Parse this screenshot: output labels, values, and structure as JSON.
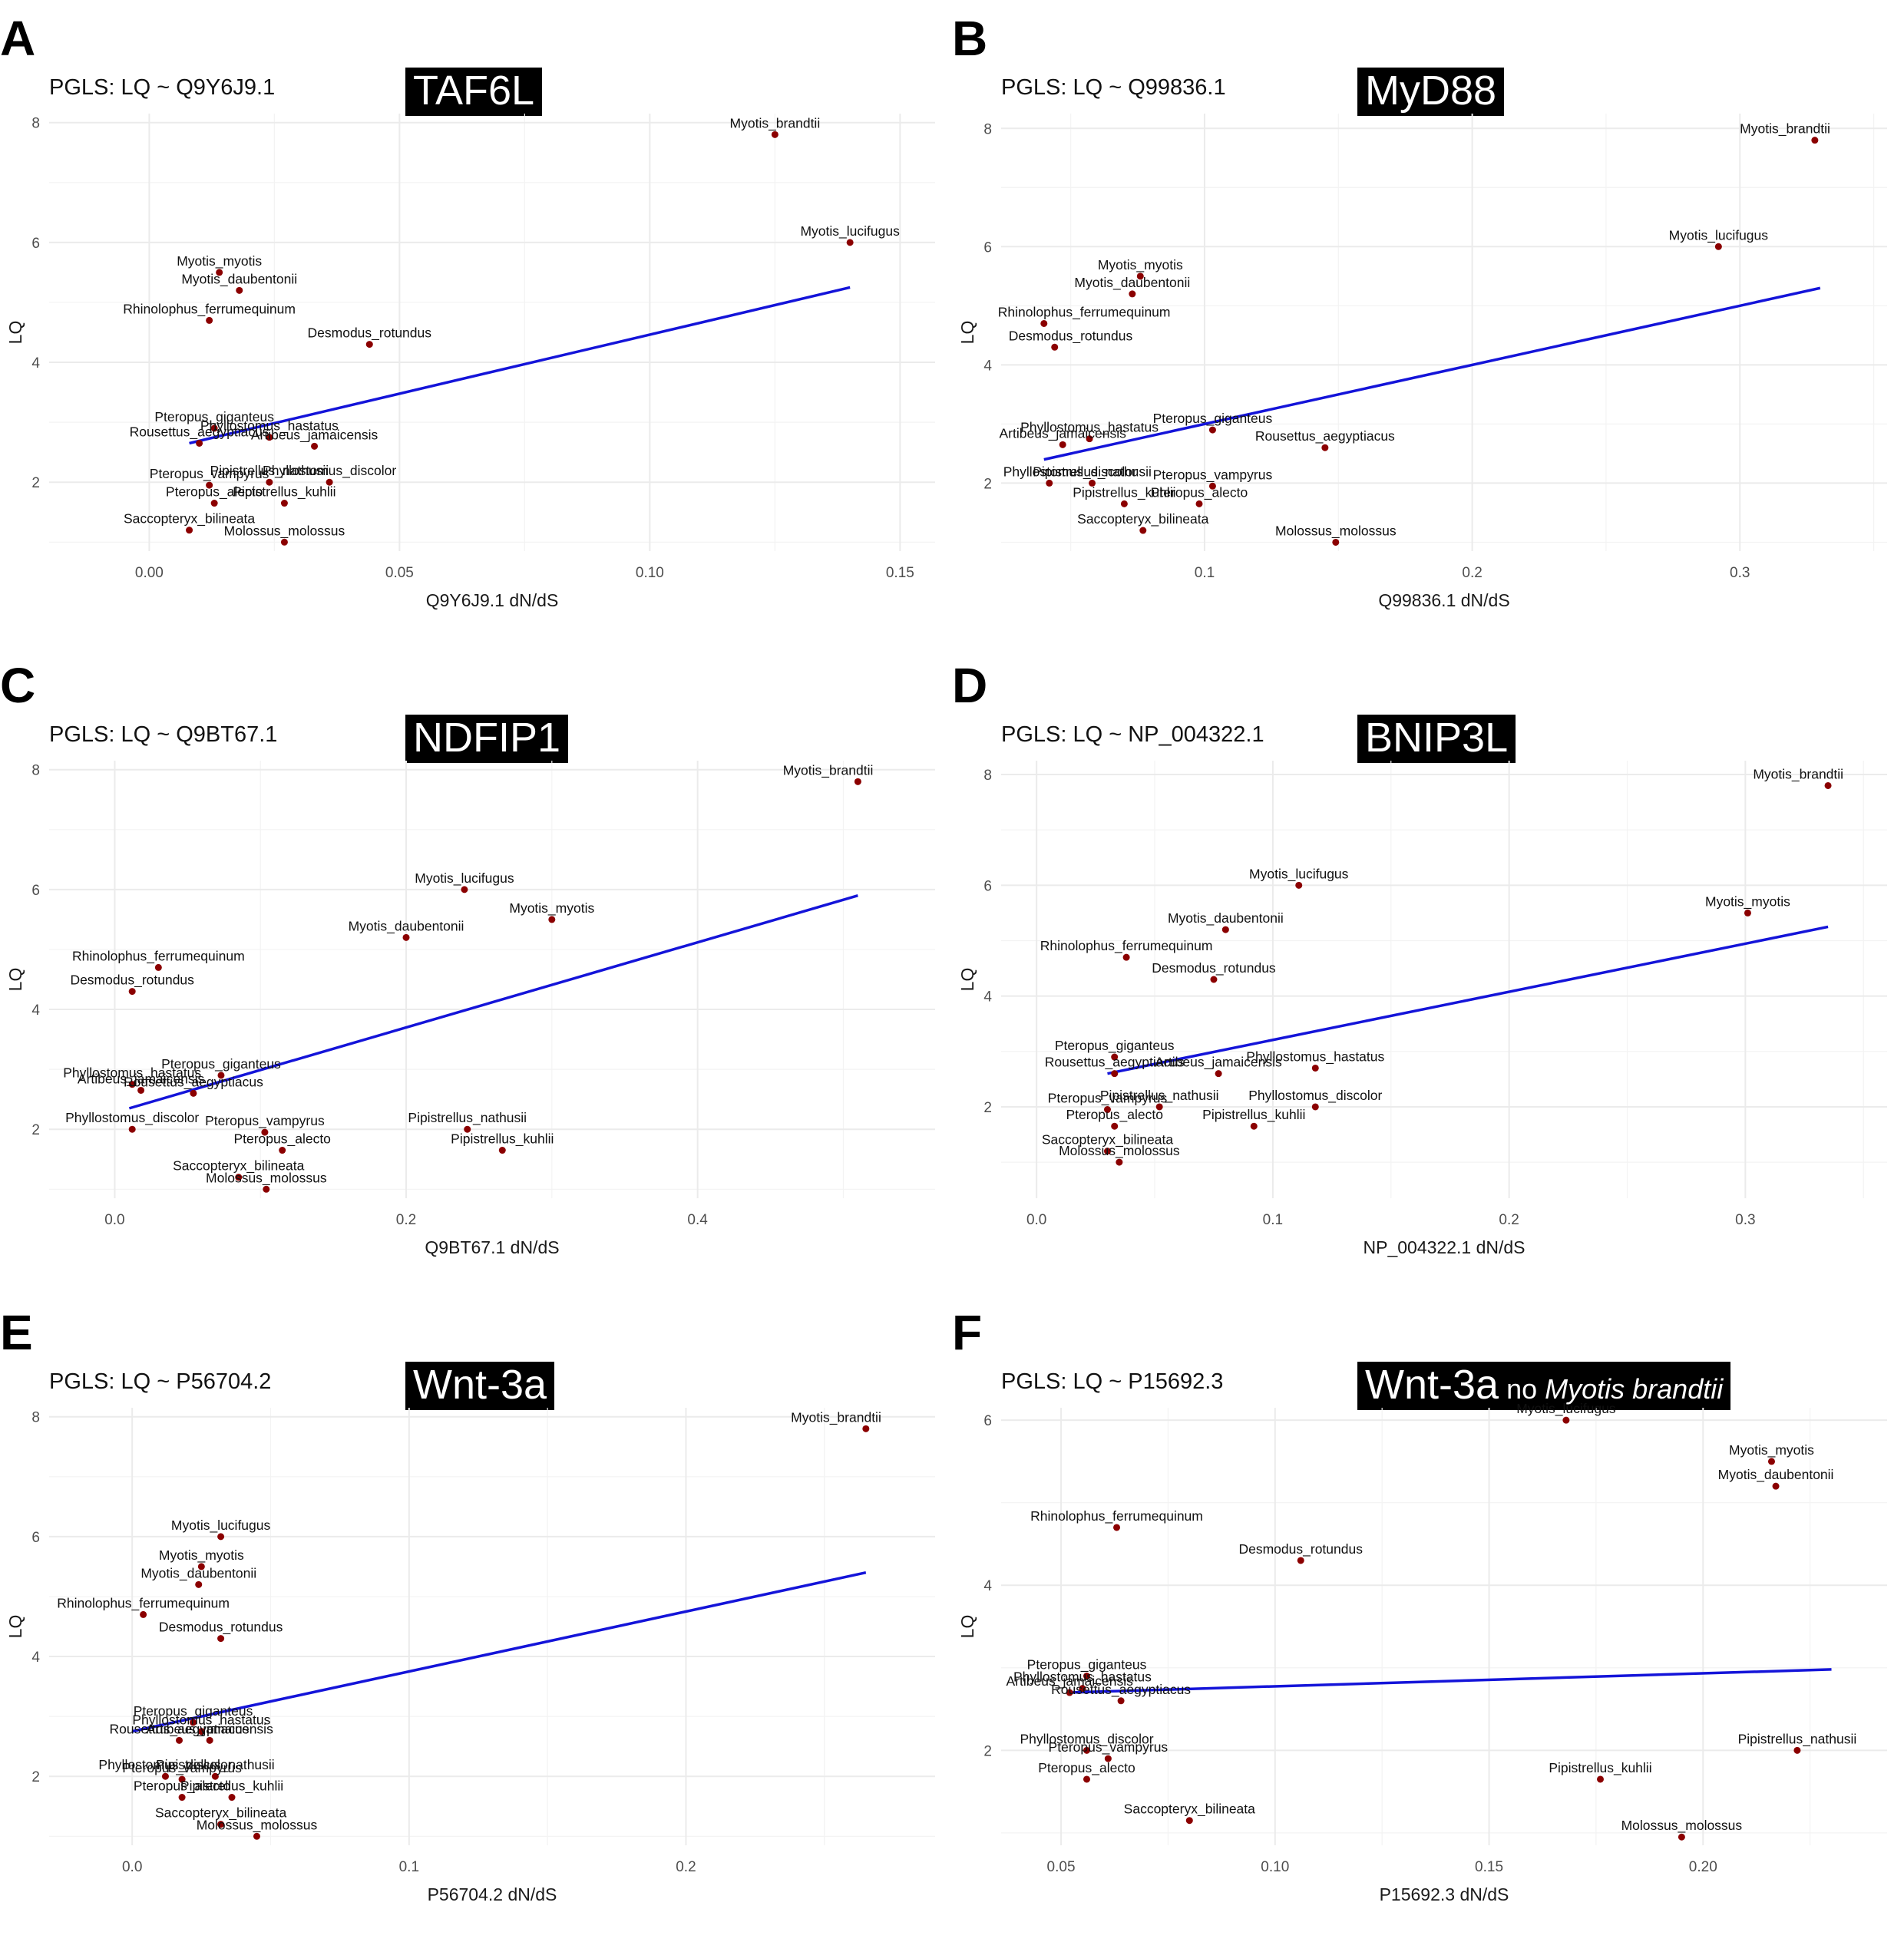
{
  "chart_data": [
    {
      "panel": "A",
      "type": "scatter",
      "title": "PGLS: LQ ~ Q9Y6J9.1",
      "gene": "TAF6L",
      "gene_note": "",
      "gene_note_italic": "",
      "xlabel": "Q9Y6J9.1 dN/dS",
      "ylabel": "LQ",
      "xlim": [
        -0.02,
        0.157
      ],
      "ylim": [
        0.85,
        8.15
      ],
      "xticks": [
        0.0,
        0.05,
        0.1,
        0.15
      ],
      "xtick_labels": [
        "0.00",
        "0.05",
        "0.10",
        "0.15"
      ],
      "yticks": [
        2,
        4,
        6,
        8
      ],
      "ytick_labels": [
        "2",
        "4",
        "6",
        "8"
      ],
      "fit": {
        "x": [
          0.008,
          0.14
        ],
        "y": [
          2.65,
          5.25
        ]
      },
      "points": [
        {
          "label": "Myotis_brandtii",
          "x": 0.125,
          "y": 7.8
        },
        {
          "label": "Myotis_lucifugus",
          "x": 0.14,
          "y": 6.0
        },
        {
          "label": "Myotis_myotis",
          "x": 0.014,
          "y": 5.5
        },
        {
          "label": "Myotis_daubentonii",
          "x": 0.018,
          "y": 5.2
        },
        {
          "label": "Rhinolophus_ferrumequinum",
          "x": 0.012,
          "y": 4.7
        },
        {
          "label": "Desmodus_rotundus",
          "x": 0.044,
          "y": 4.3
        },
        {
          "label": "Pteropus_giganteus",
          "x": 0.013,
          "y": 2.9
        },
        {
          "label": "Phyllostomus_hastatus",
          "x": 0.024,
          "y": 2.75
        },
        {
          "label": "Rousettus_aegyptiacus",
          "x": 0.01,
          "y": 2.65
        },
        {
          "label": "Artibeus_jamaicensis",
          "x": 0.033,
          "y": 2.6
        },
        {
          "label": "Pipistrellus_nathusii",
          "x": 0.024,
          "y": 2.0
        },
        {
          "label": "Phyllostomus_discolor",
          "x": 0.036,
          "y": 2.0
        },
        {
          "label": "Pteropus_vampyrus",
          "x": 0.012,
          "y": 1.95
        },
        {
          "label": "Pteropus_alecto",
          "x": 0.013,
          "y": 1.65
        },
        {
          "label": "Pipistrellus_kuhlii",
          "x": 0.027,
          "y": 1.65
        },
        {
          "label": "Saccopteryx_bilineata",
          "x": 0.008,
          "y": 1.2
        },
        {
          "label": "Molossus_molossus",
          "x": 0.027,
          "y": 1.0
        }
      ]
    },
    {
      "panel": "B",
      "type": "scatter",
      "title": "PGLS: LQ ~ Q99836.1",
      "gene": "MyD88",
      "gene_note": "",
      "gene_note_italic": "",
      "xlabel": "Q99836.1 dN/dS",
      "ylabel": "LQ",
      "xlim": [
        0.024,
        0.355
      ],
      "ylim": [
        0.85,
        8.25
      ],
      "xticks": [
        0.1,
        0.2,
        0.3
      ],
      "xtick_labels": [
        "0.1",
        "0.2",
        "0.3"
      ],
      "yticks": [
        2,
        4,
        6,
        8
      ],
      "ytick_labels": [
        "2",
        "4",
        "6",
        "8"
      ],
      "fit": {
        "x": [
          0.04,
          0.33
        ],
        "y": [
          2.4,
          5.3
        ]
      },
      "points": [
        {
          "label": "Myotis_brandtii",
          "x": 0.328,
          "y": 7.8
        },
        {
          "label": "Myotis_lucifugus",
          "x": 0.292,
          "y": 6.0
        },
        {
          "label": "Myotis_myotis",
          "x": 0.076,
          "y": 5.5
        },
        {
          "label": "Myotis_daubentonii",
          "x": 0.073,
          "y": 5.2
        },
        {
          "label": "Rhinolophus_ferrumequinum",
          "x": 0.04,
          "y": 4.7
        },
        {
          "label": "Desmodus_rotundus",
          "x": 0.044,
          "y": 4.3
        },
        {
          "label": "Pteropus_giganteus",
          "x": 0.103,
          "y": 2.9
        },
        {
          "label": "Phyllostomus_hastatus",
          "x": 0.057,
          "y": 2.75
        },
        {
          "label": "Artibeus_jamaicensis",
          "x": 0.047,
          "y": 2.65
        },
        {
          "label": "Rousettus_aegyptiacus",
          "x": 0.145,
          "y": 2.6
        },
        {
          "label": "Phyllostomus_discolor",
          "x": 0.042,
          "y": 2.0
        },
        {
          "label": "Pipistrellus_nathusii",
          "x": 0.058,
          "y": 2.0
        },
        {
          "label": "Pteropus_vampyrus",
          "x": 0.103,
          "y": 1.95
        },
        {
          "label": "Pipistrellus_kuhlii",
          "x": 0.07,
          "y": 1.65
        },
        {
          "label": "Pteropus_alecto",
          "x": 0.098,
          "y": 1.65
        },
        {
          "label": "Saccopteryx_bilineata",
          "x": 0.077,
          "y": 1.2
        },
        {
          "label": "Molossus_molossus",
          "x": 0.149,
          "y": 1.0
        }
      ]
    },
    {
      "panel": "C",
      "type": "scatter",
      "title": "PGLS: LQ ~ Q9BT67.1",
      "gene": "NDFIP1",
      "gene_note": "",
      "gene_note_italic": "",
      "xlabel": "Q9BT67.1 dN/dS",
      "ylabel": "LQ",
      "xlim": [
        -0.045,
        0.563
      ],
      "ylim": [
        0.85,
        8.15
      ],
      "xticks": [
        0.0,
        0.2,
        0.4
      ],
      "xtick_labels": [
        "0.0",
        "0.2",
        "0.4"
      ],
      "yticks": [
        2,
        4,
        6,
        8
      ],
      "ytick_labels": [
        "2",
        "4",
        "6",
        "8"
      ],
      "fit": {
        "x": [
          0.01,
          0.51
        ],
        "y": [
          2.35,
          5.9
        ]
      },
      "points": [
        {
          "label": "Myotis_brandtii",
          "x": 0.51,
          "y": 7.8
        },
        {
          "label": "Myotis_lucifugus",
          "x": 0.24,
          "y": 6.0
        },
        {
          "label": "Myotis_myotis",
          "x": 0.3,
          "y": 5.5
        },
        {
          "label": "Myotis_daubentonii",
          "x": 0.2,
          "y": 5.2
        },
        {
          "label": "Rhinolophus_ferrumequinum",
          "x": 0.03,
          "y": 4.7
        },
        {
          "label": "Desmodus_rotundus",
          "x": 0.012,
          "y": 4.3
        },
        {
          "label": "Pteropus_giganteus",
          "x": 0.073,
          "y": 2.9
        },
        {
          "label": "Phyllostomus_hastatus",
          "x": 0.012,
          "y": 2.75
        },
        {
          "label": "Artibeus_jamaicensis",
          "x": 0.018,
          "y": 2.65
        },
        {
          "label": "Rousettus_aegyptiacus",
          "x": 0.054,
          "y": 2.6
        },
        {
          "label": "Phyllostomus_discolor",
          "x": 0.012,
          "y": 2.0
        },
        {
          "label": "Pteropus_vampyrus",
          "x": 0.103,
          "y": 1.95
        },
        {
          "label": "Pipistrellus_nathusii",
          "x": 0.242,
          "y": 2.0
        },
        {
          "label": "Pteropus_alecto",
          "x": 0.115,
          "y": 1.65
        },
        {
          "label": "Pipistrellus_kuhlii",
          "x": 0.266,
          "y": 1.65
        },
        {
          "label": "Saccopteryx_bilineata",
          "x": 0.085,
          "y": 1.2
        },
        {
          "label": "Molossus_molossus",
          "x": 0.104,
          "y": 1.0
        }
      ]
    },
    {
      "panel": "D",
      "type": "scatter",
      "title": "PGLS: LQ ~ NP_004322.1",
      "gene": "BNIP3L",
      "gene_note": "",
      "gene_note_italic": "",
      "xlabel": "NP_004322.1 dN/dS",
      "ylabel": "LQ",
      "xlim": [
        -0.015,
        0.36
      ],
      "ylim": [
        0.35,
        8.25
      ],
      "xticks": [
        0.0,
        0.1,
        0.2,
        0.3
      ],
      "xtick_labels": [
        "0.0",
        "0.1",
        "0.2",
        "0.3"
      ],
      "yticks": [
        2,
        4,
        6,
        8
      ],
      "ytick_labels": [
        "2",
        "4",
        "6",
        "8"
      ],
      "fit": {
        "x": [
          0.03,
          0.335
        ],
        "y": [
          2.6,
          5.25
        ]
      },
      "points": [
        {
          "label": "Myotis_brandtii",
          "x": 0.335,
          "y": 7.8
        },
        {
          "label": "Myotis_lucifugus",
          "x": 0.111,
          "y": 6.0
        },
        {
          "label": "Myotis_myotis",
          "x": 0.301,
          "y": 5.5
        },
        {
          "label": "Myotis_daubentonii",
          "x": 0.08,
          "y": 5.2
        },
        {
          "label": "Rhinolophus_ferrumequinum",
          "x": 0.038,
          "y": 4.7
        },
        {
          "label": "Desmodus_rotundus",
          "x": 0.075,
          "y": 4.3
        },
        {
          "label": "Pteropus_giganteus",
          "x": 0.033,
          "y": 2.9
        },
        {
          "label": "Rousettus_aegyptiacus",
          "x": 0.033,
          "y": 2.6
        },
        {
          "label": "Artibeus_jamaicensis",
          "x": 0.077,
          "y": 2.6
        },
        {
          "label": "Phyllostomus_hastatus",
          "x": 0.118,
          "y": 2.7
        },
        {
          "label": "Pipistrellus_nathusii",
          "x": 0.052,
          "y": 2.0
        },
        {
          "label": "Phyllostomus_discolor",
          "x": 0.118,
          "y": 2.0
        },
        {
          "label": "Pteropus_vampyrus",
          "x": 0.03,
          "y": 1.95
        },
        {
          "label": "Pteropus_alecto",
          "x": 0.033,
          "y": 1.65
        },
        {
          "label": "Pipistrellus_kuhlii",
          "x": 0.092,
          "y": 1.65
        },
        {
          "label": "Saccopteryx_bilineata",
          "x": 0.03,
          "y": 1.2
        },
        {
          "label": "Molossus_molossus",
          "x": 0.035,
          "y": 1.0
        }
      ]
    },
    {
      "panel": "E",
      "type": "scatter",
      "title": "PGLS: LQ ~ P56704.2",
      "gene": "Wnt-3a",
      "gene_note": "",
      "gene_note_italic": "",
      "xlabel": "P56704.2 dN/dS",
      "ylabel": "LQ",
      "xlim": [
        -0.03,
        0.29
      ],
      "ylim": [
        0.85,
        8.15
      ],
      "xticks": [
        0.0,
        0.1,
        0.2
      ],
      "xtick_labels": [
        "0.0",
        "0.1",
        "0.2"
      ],
      "yticks": [
        2,
        4,
        6,
        8
      ],
      "ytick_labels": [
        "2",
        "4",
        "6",
        "8"
      ],
      "fit": {
        "x": [
          0.0,
          0.265
        ],
        "y": [
          2.75,
          5.4
        ]
      },
      "points": [
        {
          "label": "Myotis_brandtii",
          "x": 0.265,
          "y": 7.8
        },
        {
          "label": "Myotis_lucifugus",
          "x": 0.032,
          "y": 6.0
        },
        {
          "label": "Myotis_myotis",
          "x": 0.025,
          "y": 5.5
        },
        {
          "label": "Myotis_daubentonii",
          "x": 0.024,
          "y": 5.2
        },
        {
          "label": "Rhinolophus_ferrumequinum",
          "x": 0.004,
          "y": 4.7
        },
        {
          "label": "Desmodus_rotundus",
          "x": 0.032,
          "y": 4.3
        },
        {
          "label": "Pteropus_giganteus",
          "x": 0.022,
          "y": 2.9
        },
        {
          "label": "Phyllostomus_hastatus",
          "x": 0.025,
          "y": 2.75
        },
        {
          "label": "Rousettus_aegyptiacus",
          "x": 0.017,
          "y": 2.6
        },
        {
          "label": "Artibeus_jamaicensis",
          "x": 0.028,
          "y": 2.6
        },
        {
          "label": "Phyllostomus_discolor",
          "x": 0.012,
          "y": 2.0
        },
        {
          "label": "Pipistrellus_nathusii",
          "x": 0.03,
          "y": 2.0
        },
        {
          "label": "Pteropus_vampyrus",
          "x": 0.018,
          "y": 1.95
        },
        {
          "label": "Pteropus_alecto",
          "x": 0.018,
          "y": 1.65
        },
        {
          "label": "Pipistrellus_kuhlii",
          "x": 0.036,
          "y": 1.65
        },
        {
          "label": "Saccopteryx_bilineata",
          "x": 0.032,
          "y": 1.2
        },
        {
          "label": "Molossus_molossus",
          "x": 0.045,
          "y": 1.0
        }
      ]
    },
    {
      "panel": "F",
      "type": "scatter",
      "title": "PGLS: LQ ~ P15692.3",
      "gene": "Wnt-3a",
      "gene_note": "no ",
      "gene_note_italic": "Myotis brandtii",
      "xlabel": "P15692.3 dN/dS",
      "ylabel": "LQ",
      "xlim": [
        0.036,
        0.243
      ],
      "ylim": [
        0.85,
        6.15
      ],
      "xticks": [
        0.05,
        0.1,
        0.15,
        0.2
      ],
      "xtick_labels": [
        "0.05",
        "0.10",
        "0.15",
        "0.20"
      ],
      "yticks": [
        2,
        4,
        6
      ],
      "ytick_labels": [
        "2",
        "4",
        "6"
      ],
      "fit": {
        "x": [
          0.052,
          0.23
        ],
        "y": [
          2.7,
          2.98
        ]
      },
      "points": [
        {
          "label": "Myotis_lucifugus",
          "x": 0.168,
          "y": 6.0
        },
        {
          "label": "Myotis_myotis",
          "x": 0.216,
          "y": 5.5
        },
        {
          "label": "Myotis_daubentonii",
          "x": 0.217,
          "y": 5.2
        },
        {
          "label": "Rhinolophus_ferrumequinum",
          "x": 0.063,
          "y": 4.7
        },
        {
          "label": "Desmodus_rotundus",
          "x": 0.106,
          "y": 4.3
        },
        {
          "label": "Pteropus_giganteus",
          "x": 0.056,
          "y": 2.9
        },
        {
          "label": "Phyllostomus_hastatus",
          "x": 0.055,
          "y": 2.75
        },
        {
          "label": "Artibeus_jamaicensis",
          "x": 0.052,
          "y": 2.7
        },
        {
          "label": "Rousettus_aegyptiacus",
          "x": 0.064,
          "y": 2.6
        },
        {
          "label": "Pipistrellus_nathusii",
          "x": 0.222,
          "y": 2.0
        },
        {
          "label": "Phyllostomus_discolor",
          "x": 0.056,
          "y": 2.0
        },
        {
          "label": "Pteropus_vampyrus",
          "x": 0.061,
          "y": 1.9
        },
        {
          "label": "Pteropus_alecto",
          "x": 0.056,
          "y": 1.65
        },
        {
          "label": "Pipistrellus_kuhlii",
          "x": 0.176,
          "y": 1.65
        },
        {
          "label": "Saccopteryx_bilineata",
          "x": 0.08,
          "y": 1.15
        },
        {
          "label": "Molossus_molossus",
          "x": 0.195,
          "y": 0.95
        }
      ]
    }
  ],
  "colors": {
    "point": "#8b0000",
    "fit_line": "#1414d9",
    "grid": "#ebebeb",
    "gene_box": "#000000"
  }
}
